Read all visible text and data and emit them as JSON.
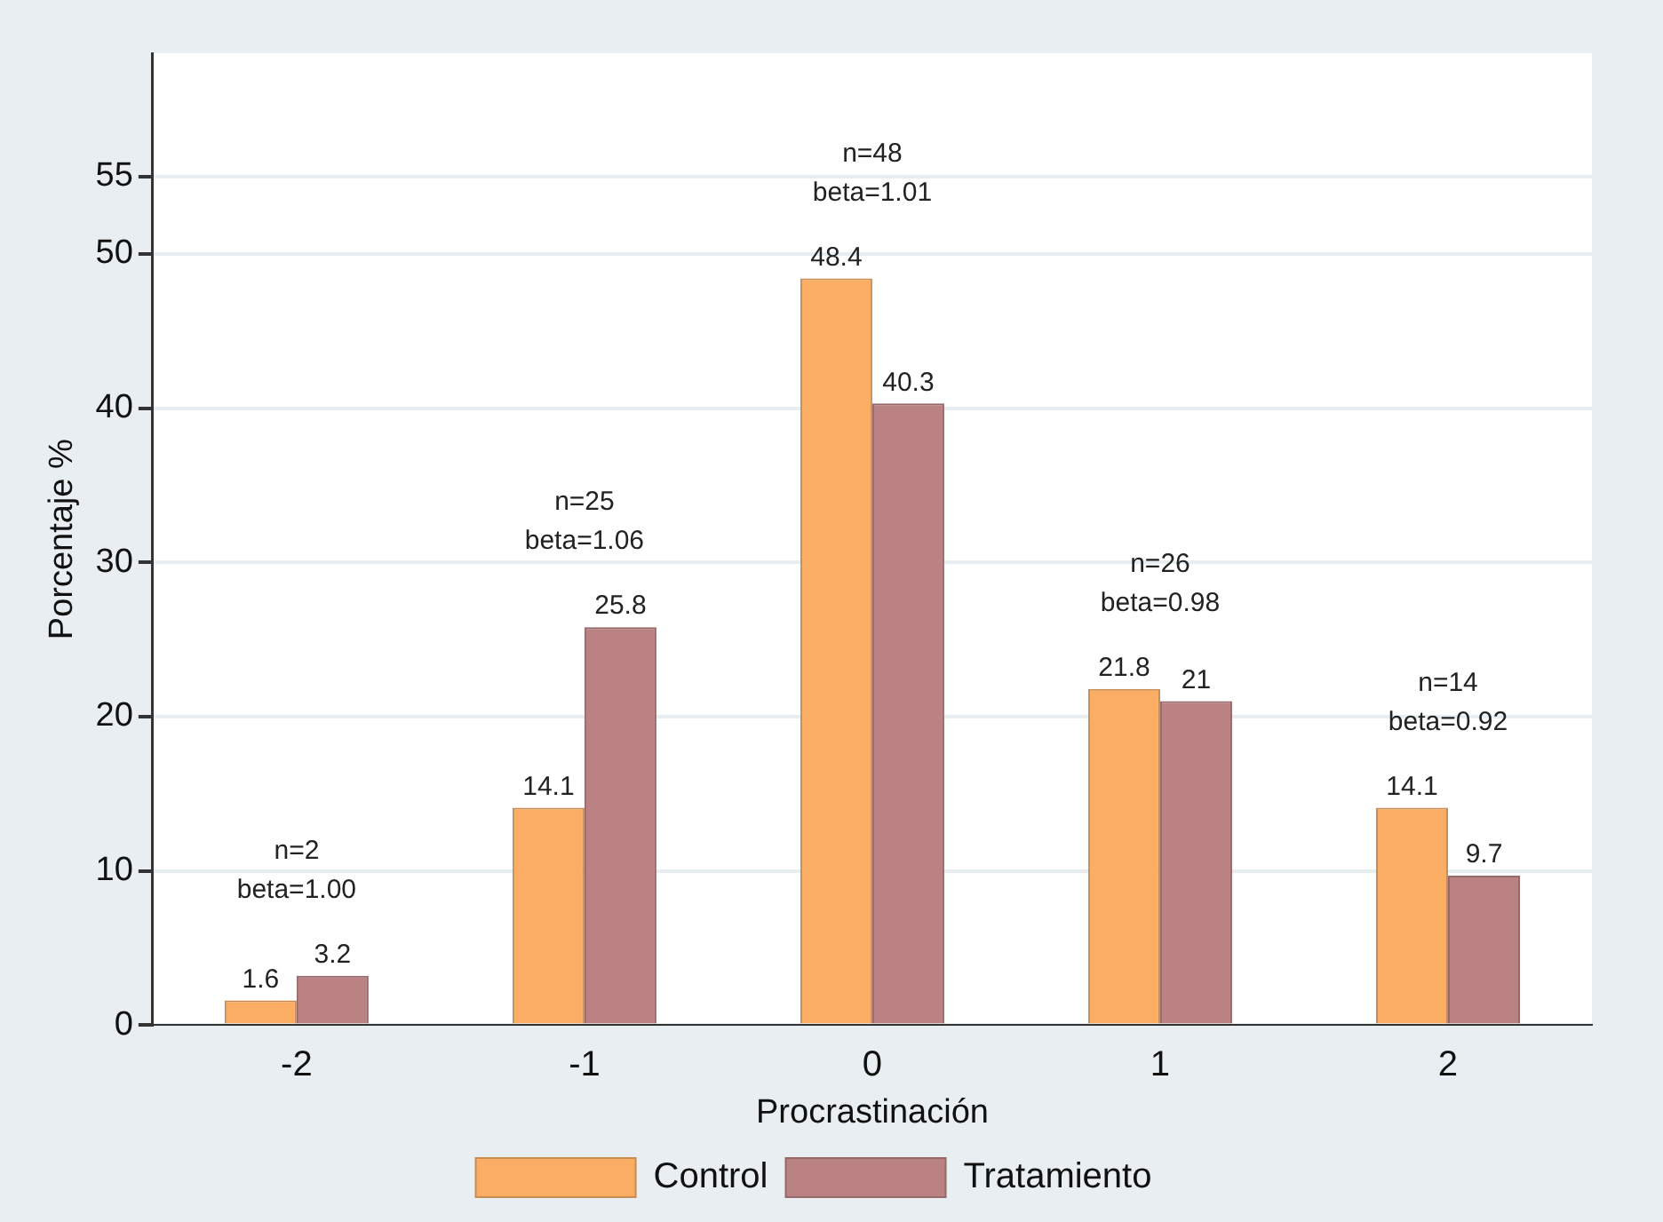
{
  "chart_data": {
    "type": "bar",
    "xlabel": "Procrastinación",
    "ylabel": "Porcentaje %",
    "categories": [
      "-2",
      "-1",
      "0",
      "1",
      "2"
    ],
    "series": [
      {
        "name": "Control",
        "color": "#fbae63",
        "values": [
          1.6,
          14.1,
          48.4,
          21.8,
          14.1
        ]
      },
      {
        "name": "Tratamiento",
        "color": "#ba8283",
        "values": [
          3.2,
          25.8,
          40.3,
          21,
          9.7
        ]
      }
    ],
    "ylim": [
      0,
      63
    ],
    "yticks": [
      0,
      10,
      20,
      30,
      40,
      50,
      55
    ],
    "grid": "y",
    "legend": "bottom",
    "data_labels": true,
    "annotations": [
      "n=2",
      "beta=1.00",
      "n=25",
      "beta=1.06",
      "n=48",
      "beta=1.01",
      "n=26",
      "beta=0.98",
      "n=14",
      "beta=0.92"
    ]
  }
}
